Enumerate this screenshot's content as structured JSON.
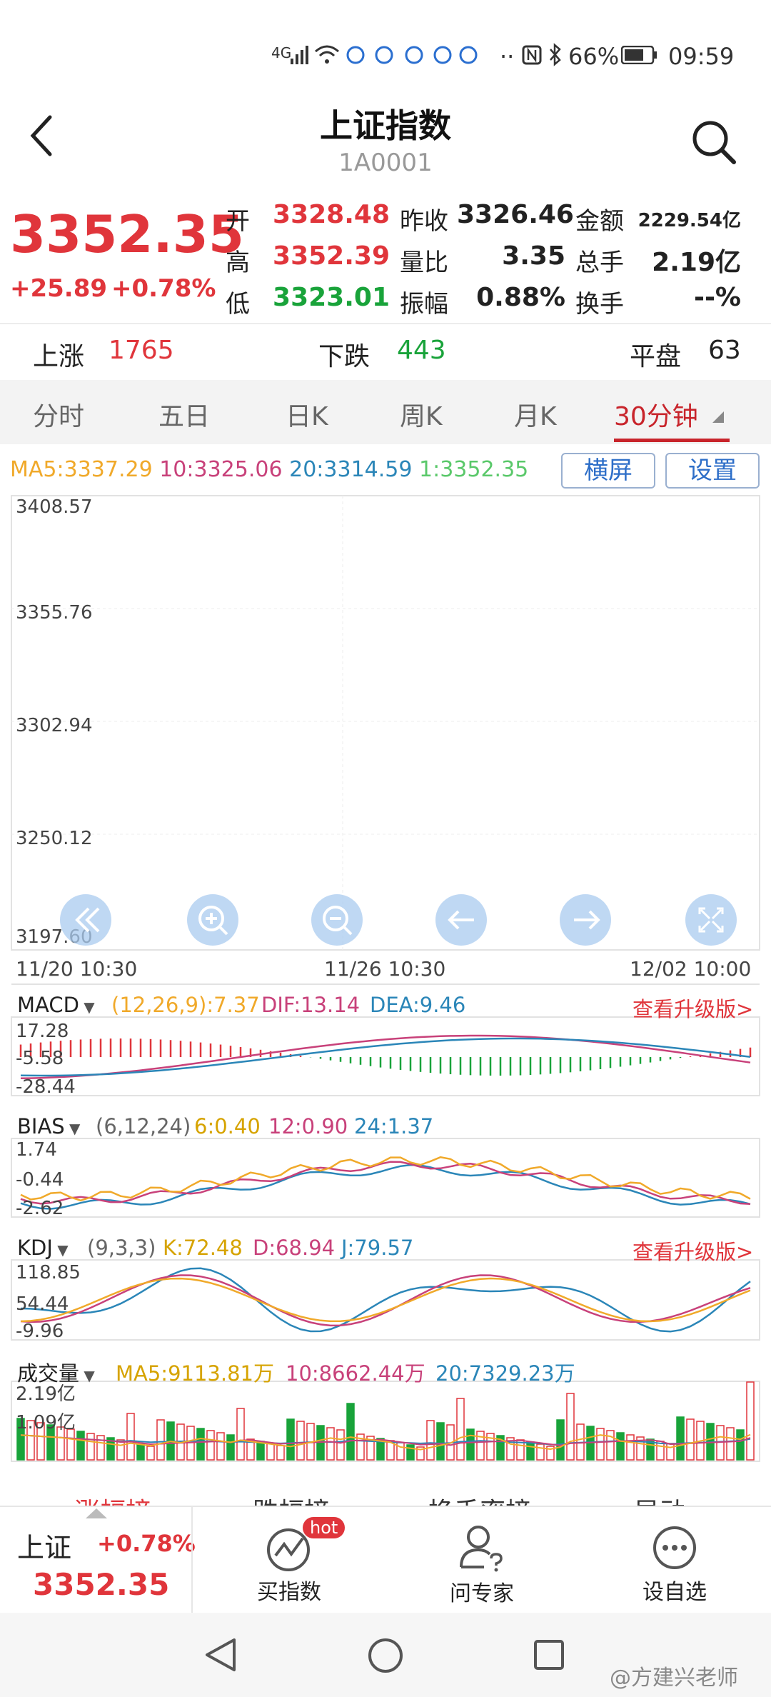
{
  "status": {
    "network": "4G",
    "battery": "66%",
    "time": "09:59"
  },
  "header": {
    "title": "上证指数",
    "code": "1A0001"
  },
  "quote": {
    "price": "3352.35",
    "change": "+25.89",
    "change_pct": "+0.78%",
    "open_label": "开",
    "open": "3328.48",
    "high_label": "高",
    "high": "3352.39",
    "low_label": "低",
    "low": "3323.01",
    "prev_close_label": "昨收",
    "prev_close": "3326.46",
    "vol_ratio_label": "量比",
    "vol_ratio": "3.35",
    "amplitude_label": "振幅",
    "amplitude": "0.88%",
    "amount_label": "金额",
    "amount": "2229.54亿",
    "total_hand_label": "总手",
    "total_hand": "2.19亿",
    "turnover_label": "换手",
    "turnover": "--%"
  },
  "breadth": {
    "up_label": "上涨",
    "up": "1765",
    "down_label": "下跌",
    "down": "443",
    "flat_label": "平盘",
    "flat": "63"
  },
  "tabs": [
    "分时",
    "五日",
    "日K",
    "周K",
    "月K",
    "30分钟"
  ],
  "ma": {
    "ma5": "MA5:3337.29",
    "ma10": "10:3325.06",
    "ma20": "20:3314.59",
    "ma1": "1:3352.35"
  },
  "buttons": {
    "landscape": "横屏",
    "settings": "设置"
  },
  "kline": {
    "y_labels": [
      "3408.57",
      "3355.76",
      "3302.94",
      "3250.12",
      "3197.60"
    ],
    "x_labels": [
      "11/20 10:30",
      "11/26 10:30",
      "12/02 10:00"
    ]
  },
  "macd": {
    "name": "MACD",
    "params": "(12,26,9):7.37",
    "dif": "DIF:13.14",
    "dea": "DEA:9.46",
    "upgrade": "查看升级版>",
    "y_labels": [
      "17.28",
      "-5.58",
      "-28.44"
    ]
  },
  "bias": {
    "name": "BIAS",
    "params": "(6,12,24)",
    "b6": "6:0.40",
    "b12": "12:0.90",
    "b24": "24:1.37",
    "y_labels": [
      "1.74",
      "-0.44",
      "-2.62"
    ]
  },
  "kdj": {
    "name": "KDJ",
    "params": "(9,3,3)",
    "k": "K:72.48",
    "d": "D:68.94",
    "j": "J:79.57",
    "upgrade": "查看升级版>",
    "y_labels": [
      "118.85",
      "54.44",
      "-9.96"
    ]
  },
  "volume": {
    "name": "成交量",
    "ma5": "MA5:9113.81万",
    "ma10": "10:8662.44万",
    "ma20": "20:7329.23万",
    "y_labels": [
      "2.19亿",
      "1.09亿"
    ]
  },
  "ranks": [
    "涨幅榜",
    "跌幅榜",
    "换手率榜",
    "异动"
  ],
  "bottom": {
    "name": "上证",
    "pct": "+0.78%",
    "price": "3352.35",
    "buy": "买指数",
    "hot": "hot",
    "ask": "问专家",
    "watch": "设自选"
  },
  "watermark": "@方建兴老师",
  "colors": {
    "up": "#e0353b",
    "down": "#19a33a",
    "ma5": "#f0a92a",
    "ma10": "#c8417a",
    "ma20": "#2b86b8",
    "ma1": "#5ac86a"
  }
}
